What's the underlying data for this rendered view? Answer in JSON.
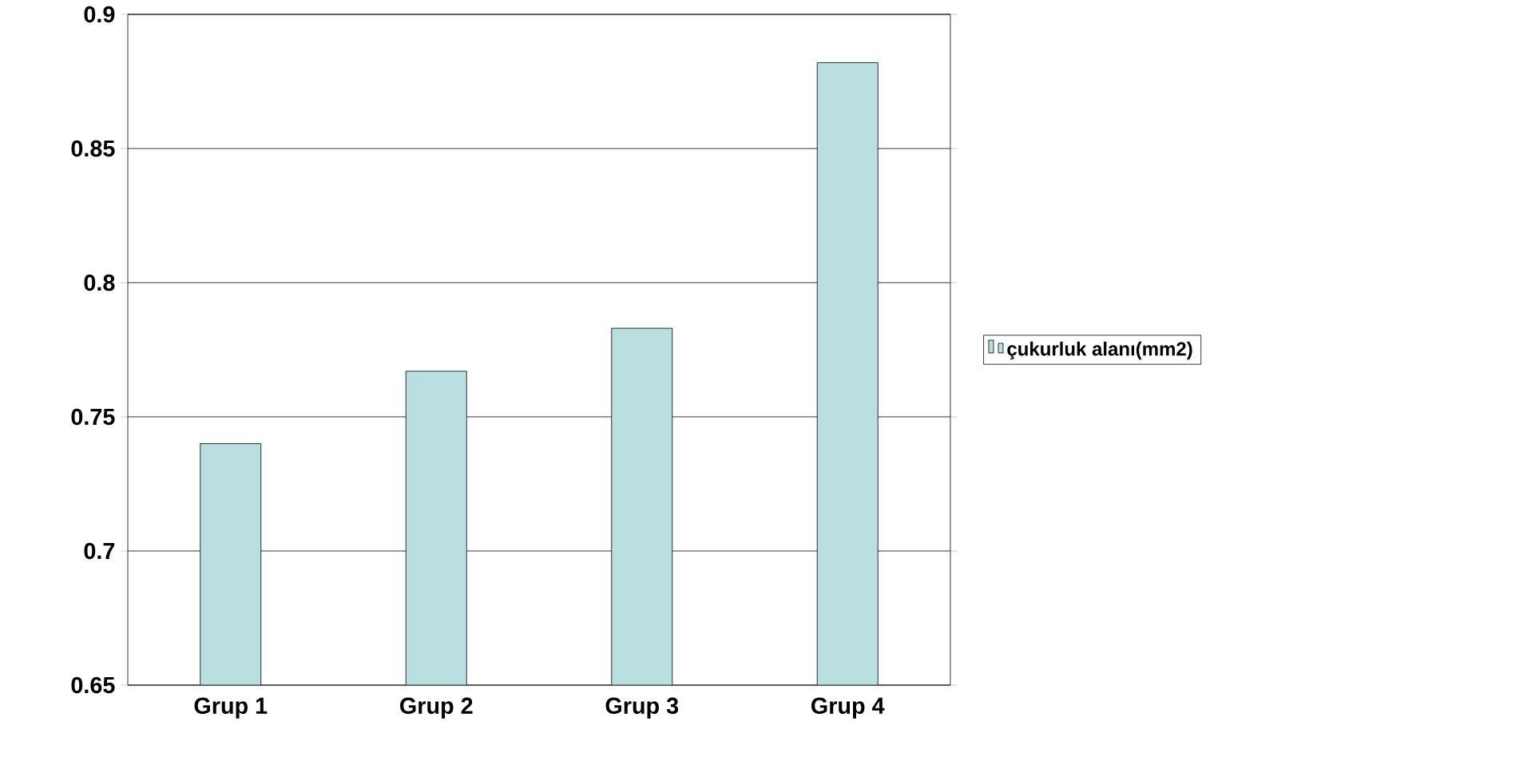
{
  "chart_data": {
    "type": "bar",
    "categories": [
      "Grup 1",
      "Grup 2",
      "Grup 3",
      "Grup 4"
    ],
    "series": [
      {
        "name": "çukurluk alanı(mm2)",
        "color": "#b9dfe0",
        "values": [
          0.74,
          0.767,
          0.783,
          0.882
        ]
      }
    ],
    "ylim": [
      0.65,
      0.9
    ],
    "yticks": [
      0.65,
      0.7,
      0.75,
      0.8,
      0.85,
      0.9
    ],
    "grid": "y",
    "legend": "right"
  }
}
